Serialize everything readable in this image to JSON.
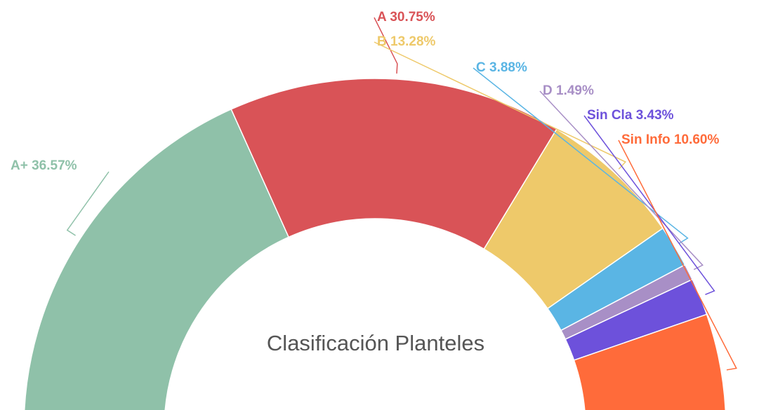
{
  "chart_data": {
    "type": "semi-donut",
    "title": "Clasificación Planteles",
    "categories": [
      "A+",
      "A",
      "B",
      "C",
      "D",
      "Sin Cla",
      "Sin Info"
    ],
    "values": [
      36.57,
      30.75,
      13.28,
      3.88,
      1.49,
      3.43,
      10.6
    ],
    "value_labels": [
      "36.57%",
      "30.75%",
      "13.28%",
      "3.88%",
      "1.49%",
      "3.43%",
      "10.60%"
    ],
    "colors": [
      "#8fc1a9",
      "#d95357",
      "#eec96a",
      "#5ab5e4",
      "#a88fc6",
      "#6d51db",
      "#ff6b3a"
    ]
  }
}
